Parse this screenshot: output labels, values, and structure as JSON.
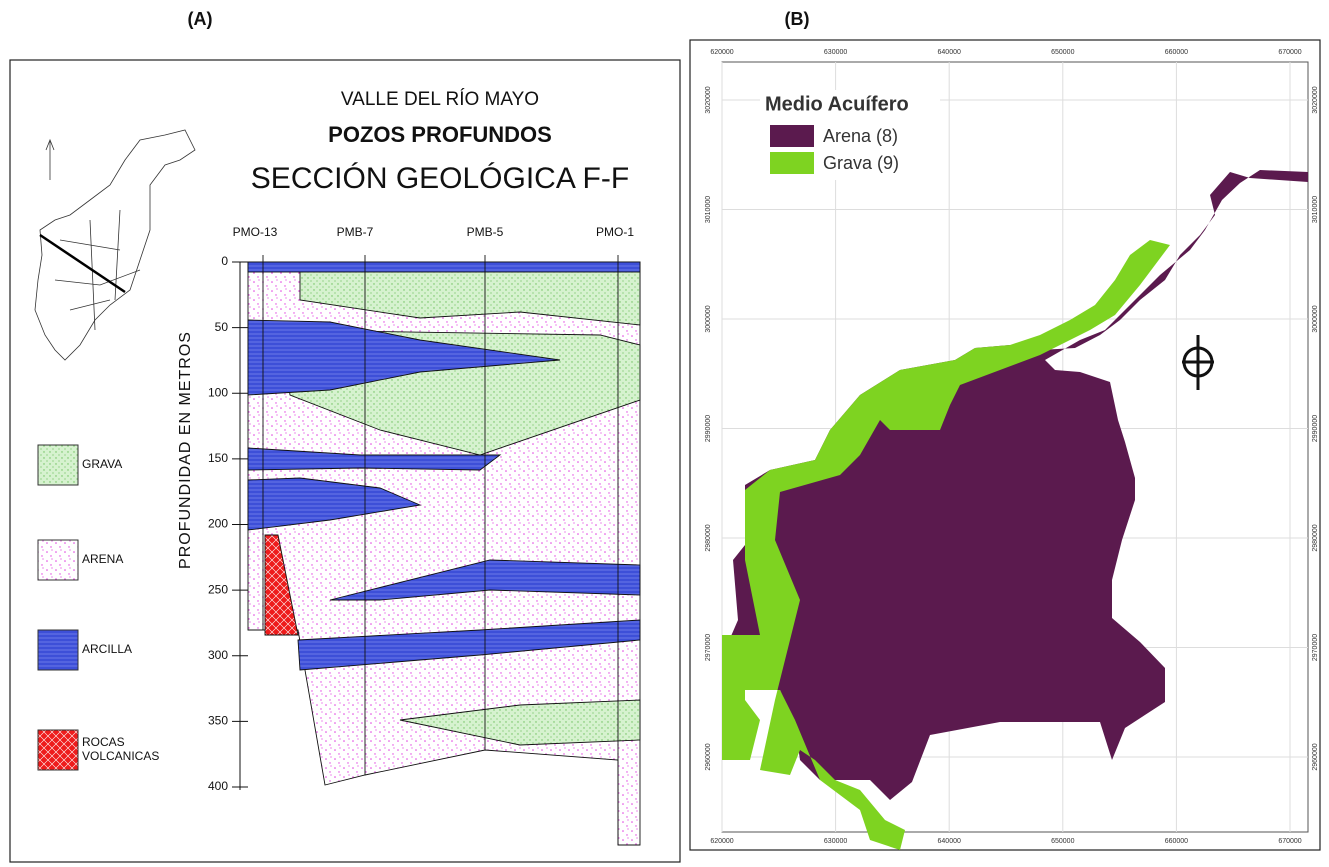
{
  "panels": [
    {
      "label": "(A)",
      "title_lines": [
        "VALLE DEL RÍO MAYO",
        "POZOS PROFUNDOS",
        "SECCIÓN GEOLÓGICA F-F"
      ],
      "wells": [
        "PMO-13",
        "PMB-7",
        "PMB-5",
        "PMO-1"
      ],
      "depth_axis_title": "PROFUNDIDAD EN METROS",
      "depth_ticks": [
        0,
        50,
        100,
        150,
        200,
        250,
        300,
        350,
        400
      ],
      "legend": [
        [
          "GRAVA"
        ],
        [
          "ARENA"
        ],
        [
          "ARCILLA"
        ],
        [
          "ROCAS",
          "VOLCANICAS"
        ]
      ]
    },
    {
      "label": "(B)",
      "legend_title": "Medio Acuífero",
      "legend": [
        "Arena (8)",
        "Grava (9)"
      ],
      "x_ticks": [
        620000,
        630000,
        640000,
        650000,
        660000,
        670000
      ],
      "y_ticks": [
        3020000,
        3010000,
        3000000,
        2990000,
        2980000,
        2970000,
        2960000
      ]
    }
  ]
}
